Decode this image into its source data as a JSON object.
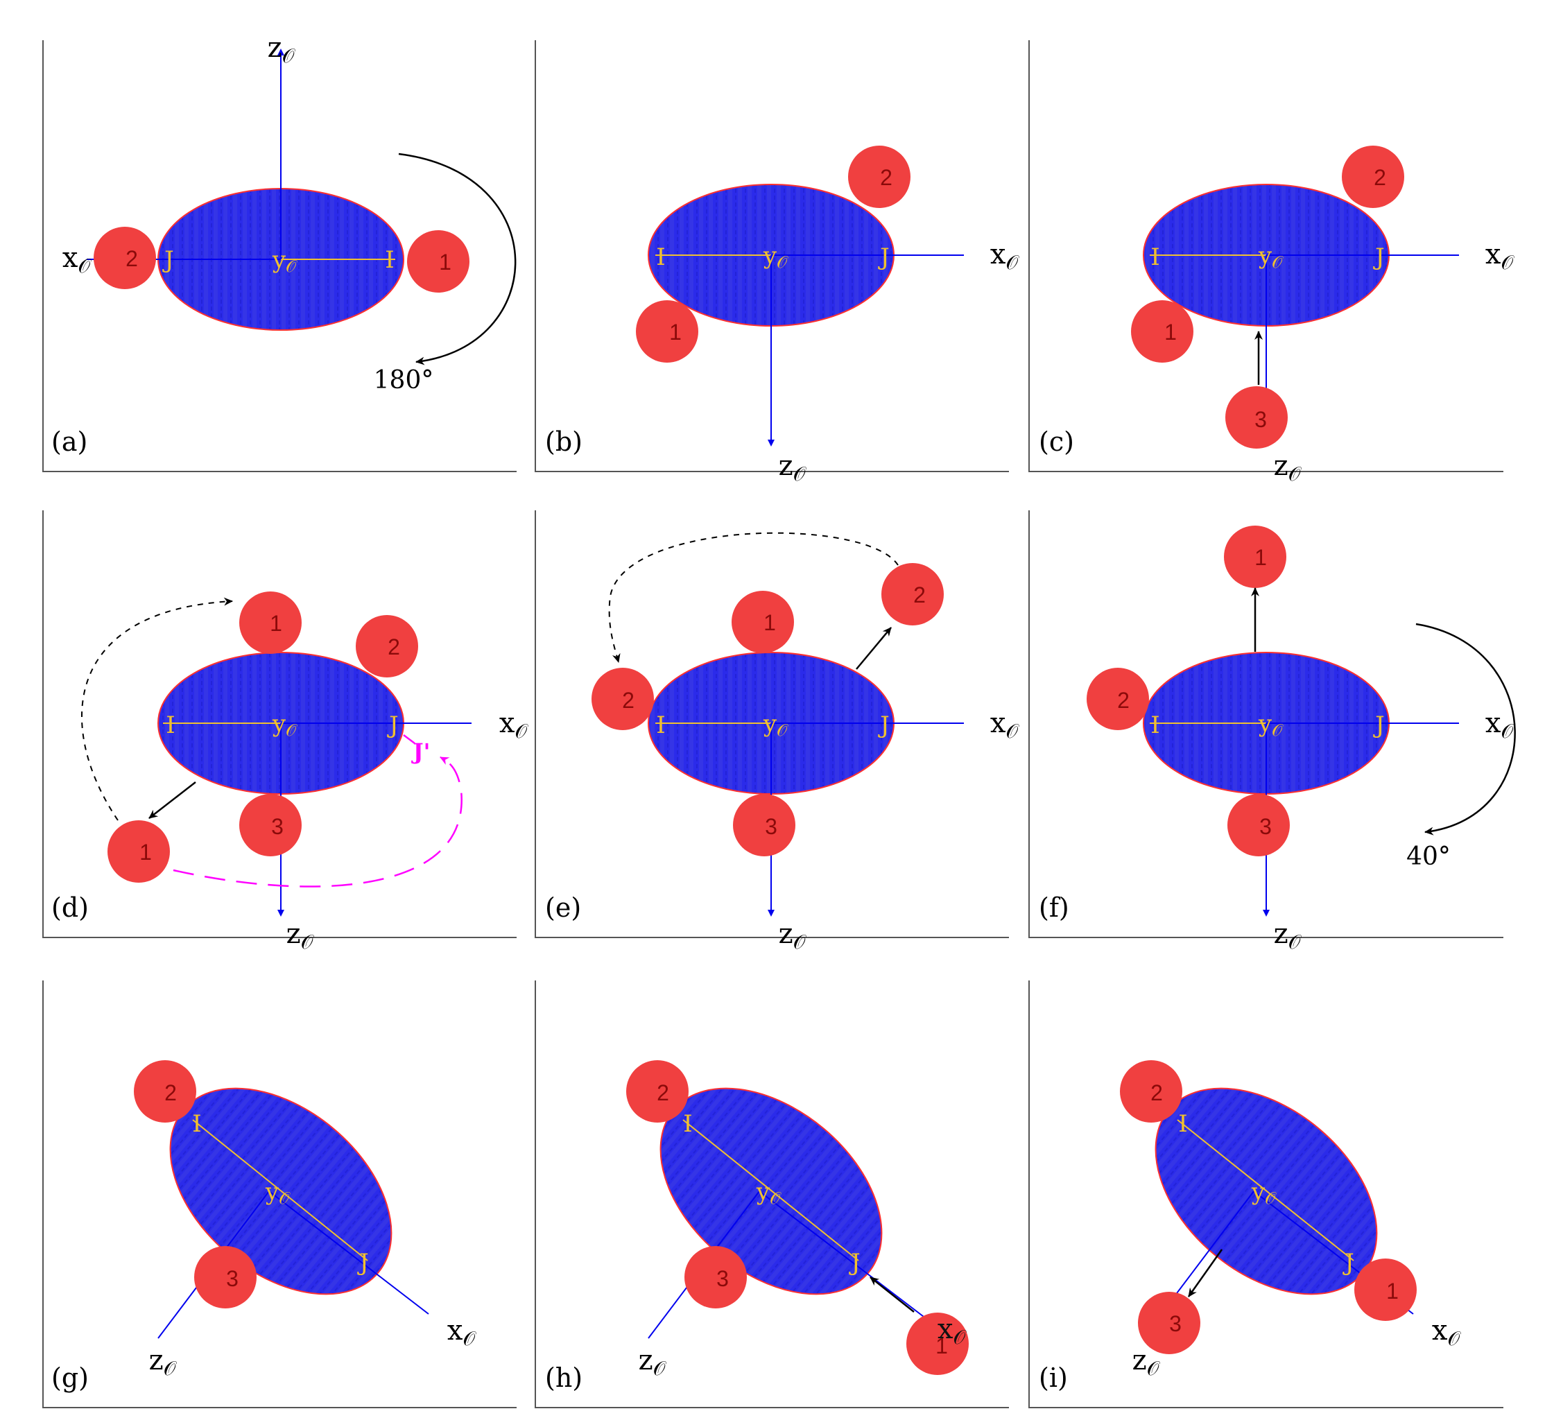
{
  "colors": {
    "ellipsoid": "#2b2bea",
    "ellipsoid_stripe": "#3a3ae0",
    "ellipsoid_edge": "#ff3030",
    "sphere": "#f04040",
    "sphere_text": "#8b0a0a",
    "axis": "#0000ee",
    "axis_label": "#000000",
    "inner_label": "#f0c030",
    "motion_arrow": "#000000",
    "highlight_path": "#ff00ff",
    "frame": "#555555"
  },
  "axis_labels": {
    "x": "x",
    "y": "y",
    "z": "z",
    "subscript": "𝒪"
  },
  "inner_labels": {
    "i": "I",
    "j": "J",
    "j_prime": "J'"
  },
  "panels": [
    {
      "id": "a",
      "label": "(a)",
      "rotation_label": "180°",
      "spheres": [
        "2",
        "1"
      ]
    },
    {
      "id": "b",
      "label": "(b)",
      "spheres": [
        "2",
        "1"
      ]
    },
    {
      "id": "c",
      "label": "(c)",
      "spheres": [
        "2",
        "1",
        "3"
      ]
    },
    {
      "id": "d",
      "label": "(d)",
      "spheres": [
        "1",
        "2",
        "1",
        "3"
      ]
    },
    {
      "id": "e",
      "label": "(e)",
      "spheres": [
        "1",
        "2",
        "2",
        "3"
      ]
    },
    {
      "id": "f",
      "label": "(f)",
      "rotation_label": "40°",
      "spheres": [
        "1",
        "2",
        "3"
      ]
    },
    {
      "id": "g",
      "label": "(g)",
      "spheres": [
        "2",
        "3"
      ]
    },
    {
      "id": "h",
      "label": "(h)",
      "spheres": [
        "2",
        "3",
        "1"
      ]
    },
    {
      "id": "i",
      "label": "(i)",
      "spheres": [
        "2",
        "1",
        "3"
      ]
    }
  ]
}
